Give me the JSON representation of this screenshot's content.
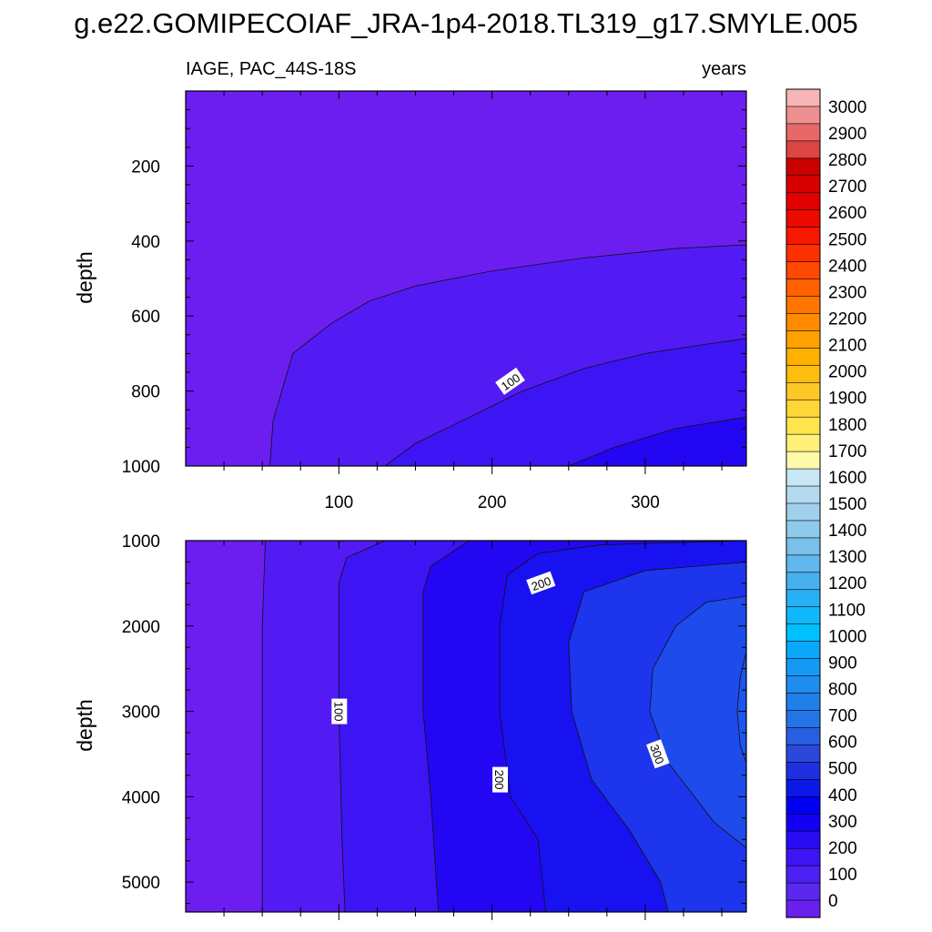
{
  "chart_data": [
    {
      "type": "contour",
      "title": "g.e22.GOMIPECOIAF_JRA-1p4-2018.TL319_g17.SMYLE.005",
      "left_label": "IAGE, PAC_44S-18S",
      "right_label": "years",
      "xlabel": "",
      "ylabel": "depth",
      "xlim": [
        0,
        366
      ],
      "ylim": [
        1000,
        0
      ],
      "xticks": [
        100,
        200,
        300
      ],
      "yticks": [
        200,
        400,
        600,
        800,
        1000
      ],
      "contour_lines": [
        {
          "level": 50,
          "label": "",
          "points": [
            [
              55,
              1000
            ],
            [
              57,
              880
            ],
            [
              70,
              700
            ],
            [
              95,
              620
            ],
            [
              120,
              560
            ],
            [
              150,
              520
            ],
            [
              200,
              480
            ],
            [
              260,
              445
            ],
            [
              320,
              420
            ],
            [
              366,
              410
            ]
          ]
        },
        {
          "level": 100,
          "label": "100",
          "points": [
            [
              130,
              1000
            ],
            [
              150,
              940
            ],
            [
              180,
              880
            ],
            [
              220,
              800
            ],
            [
              260,
              740
            ],
            [
              300,
              700
            ],
            [
              340,
              675
            ],
            [
              366,
              660
            ]
          ]
        },
        {
          "level": 150,
          "label": "",
          "points": [
            [
              250,
              1000
            ],
            [
              280,
              950
            ],
            [
              320,
              900
            ],
            [
              350,
              880
            ],
            [
              366,
              870
            ]
          ]
        }
      ],
      "contour_labels": [
        {
          "text": "100",
          "x": 212,
          "y": 775,
          "angle": -35
        }
      ]
    },
    {
      "type": "contour",
      "xlabel": "",
      "ylabel": "depth",
      "xlim": [
        0,
        366
      ],
      "ylim": [
        5350,
        1000
      ],
      "xticks": [
        100,
        200,
        300
      ],
      "yticks": [
        1000,
        2000,
        3000,
        4000,
        5000
      ],
      "contour_lines": [
        {
          "level": 50,
          "label": "",
          "points": [
            [
              52,
              1000
            ],
            [
              50,
              2000
            ],
            [
              50,
              3000
            ],
            [
              50,
              4000
            ],
            [
              50,
              5350
            ]
          ]
        },
        {
          "level": 100,
          "label": "100",
          "points": [
            [
              130,
              1000
            ],
            [
              105,
              1200
            ],
            [
              100,
              1500
            ],
            [
              100,
              3000
            ],
            [
              102,
              4500
            ],
            [
              104,
              5350
            ]
          ]
        },
        {
          "level": 150,
          "label": "",
          "points": [
            [
              185,
              1000
            ],
            [
              160,
              1300
            ],
            [
              155,
              1600
            ],
            [
              155,
              3000
            ],
            [
              160,
              4000
            ],
            [
              165,
              5350
            ]
          ]
        },
        {
          "level": 200,
          "label": "200",
          "points": [
            [
              366,
              1000
            ],
            [
              270,
              1050
            ],
            [
              230,
              1150
            ],
            [
              210,
              1400
            ],
            [
              205,
              2000
            ],
            [
              205,
              3000
            ],
            [
              212,
              4000
            ],
            [
              230,
              4500
            ],
            [
              235,
              5350
            ]
          ]
        },
        {
          "level": 250,
          "label": "",
          "points": [
            [
              366,
              1250
            ],
            [
              300,
              1350
            ],
            [
              260,
              1600
            ],
            [
              250,
              2200
            ],
            [
              252,
              3000
            ],
            [
              265,
              3800
            ],
            [
              290,
              4400
            ],
            [
              310,
              5000
            ],
            [
              315,
              5350
            ]
          ]
        },
        {
          "level": 300,
          "label": "300",
          "points": [
            [
              366,
              1650
            ],
            [
              340,
              1720
            ],
            [
              320,
              2000
            ],
            [
              305,
              2500
            ],
            [
              303,
              3000
            ],
            [
              315,
              3600
            ],
            [
              345,
              4300
            ],
            [
              366,
              4600
            ]
          ]
        },
        {
          "level": 350,
          "label": "",
          "points": [
            [
              366,
              2300
            ],
            [
              362,
              2600
            ],
            [
              360,
              3000
            ],
            [
              362,
              3400
            ],
            [
              366,
              3600
            ]
          ]
        }
      ],
      "contour_labels": [
        {
          "text": "200",
          "x": 232,
          "y": 1500,
          "angle": -20
        },
        {
          "text": "100",
          "x": 100,
          "y": 3000,
          "angle": 90
        },
        {
          "text": "200",
          "x": 205,
          "y": 3800,
          "angle": 90
        },
        {
          "text": "300",
          "x": 308,
          "y": 3500,
          "angle": 70
        }
      ]
    }
  ],
  "colorbar": {
    "labels": [
      "3000",
      "2900",
      "2800",
      "2700",
      "2600",
      "2500",
      "2400",
      "2300",
      "2200",
      "2100",
      "2000",
      "1900",
      "1800",
      "1700",
      "1600",
      "1500",
      "1400",
      "1300",
      "1200",
      "1100",
      "1000",
      "900",
      "800",
      "700",
      "600",
      "500",
      "400",
      "300",
      "200",
      "100",
      "0"
    ],
    "colors": [
      "#F8B5B5",
      "#EF9090",
      "#E66868",
      "#DD4444",
      "#CC0000",
      "#D80000",
      "#E20000",
      "#EC0A00",
      "#F81800",
      "#FF3000",
      "#FF4800",
      "#FF6000",
      "#FF7500",
      "#FF8C00",
      "#FFA200",
      "#FFB000",
      "#FFBD10",
      "#FFC829",
      "#FFD638",
      "#FFE44C",
      "#FFF07A",
      "#FFFAAA",
      "#C8E6F4",
      "#B4DAF0",
      "#A0D0EC",
      "#8ECAEA",
      "#7AC0E8",
      "#60B8EC",
      "#48B0EE",
      "#28B0F5",
      "#10B8FA",
      "#00C0FF",
      "#0AA8FA",
      "#149AF6",
      "#1E8CF0",
      "#2080EA",
      "#2474E6",
      "#285EE0",
      "#2C48DB",
      "#1E30E0",
      "#0A18E8",
      "#0000F0",
      "#1200F2",
      "#2A0CF4",
      "#3E14F4",
      "#4C20F2",
      "#5A28EE",
      "#6A20EE"
    ]
  }
}
